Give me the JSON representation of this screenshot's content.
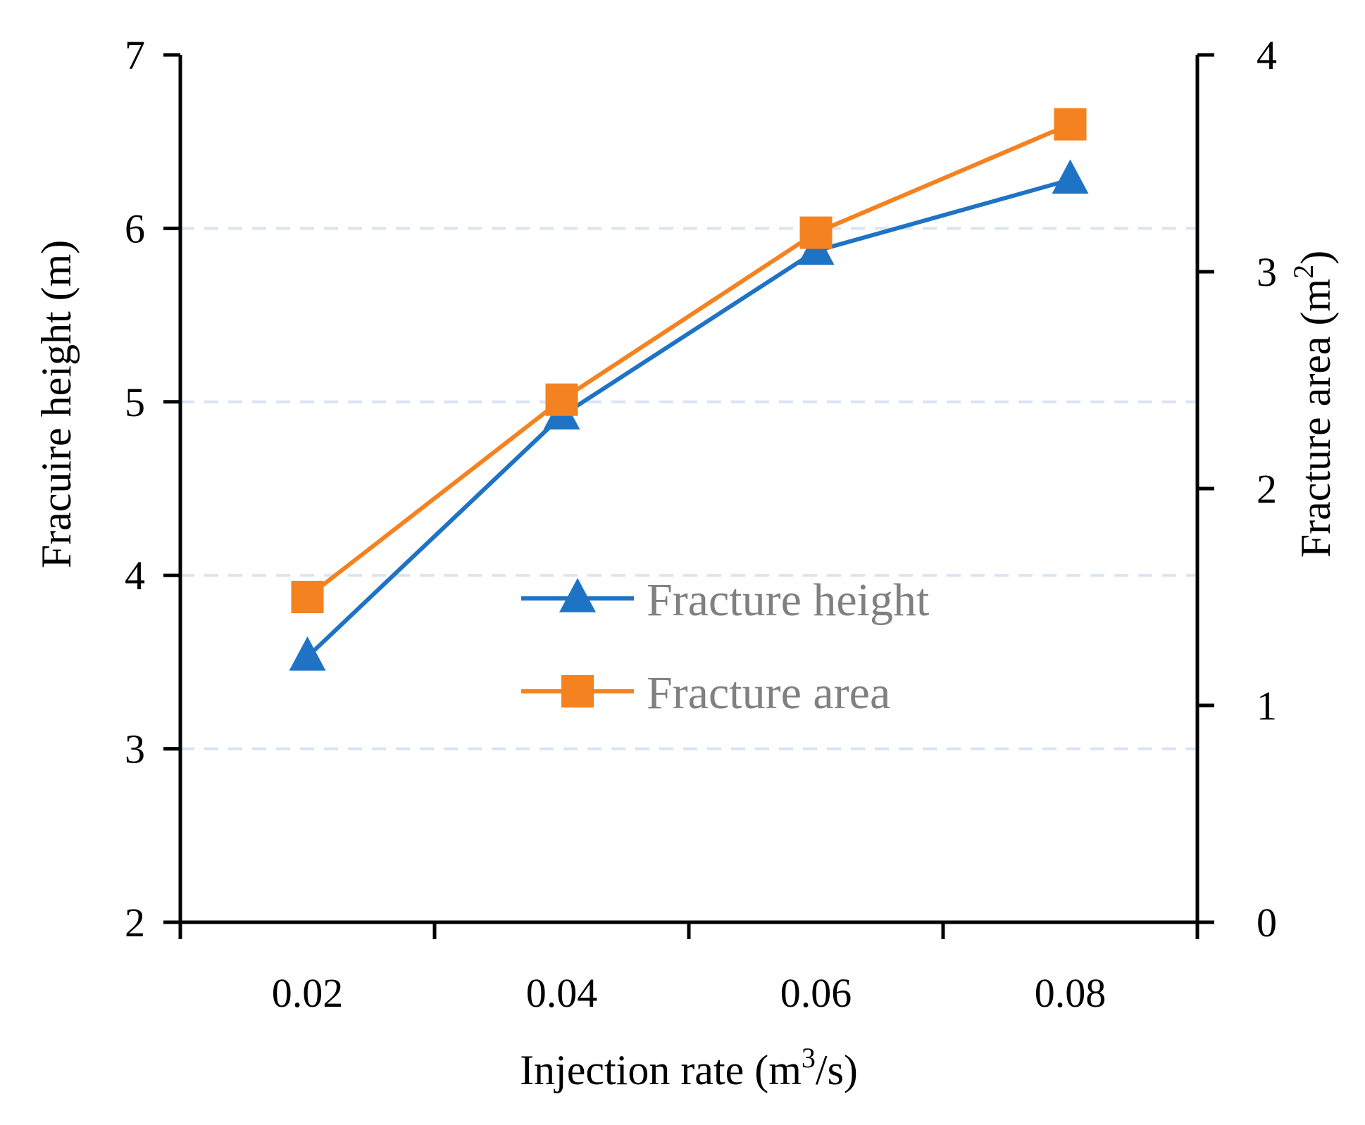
{
  "chart_data": {
    "type": "line",
    "x_ticks": [
      "0.02",
      "0.04",
      "0.06",
      "0.08"
    ],
    "xlabel": {
      "main": "Injection rate (m",
      "sup": "3",
      "tail": "/s)"
    },
    "y_left": {
      "label": "Fracuire height (m)",
      "ticks": [
        "2",
        "3",
        "4",
        "5",
        "6",
        "7"
      ],
      "ylim": [
        2,
        7
      ],
      "grid_values": [
        3,
        4,
        5,
        6
      ]
    },
    "y_right": {
      "label": {
        "main": "Fracture area (m",
        "sup": "2",
        "tail": ")"
      },
      "ticks": [
        "0",
        "1",
        "2",
        "3",
        "4"
      ],
      "ylim": [
        0,
        4
      ]
    },
    "series": [
      {
        "name": "Fracture height",
        "axis": "left",
        "marker": "triangle",
        "color": "#1f73c5",
        "x": [
          0.02,
          0.04,
          0.06,
          0.08
        ],
        "values": [
          3.53,
          4.92,
          5.87,
          6.28
        ]
      },
      {
        "name": "Fracture area",
        "axis": "right",
        "marker": "square",
        "color": "#f58220",
        "x": [
          0.02,
          0.04,
          0.06,
          0.08
        ],
        "values": [
          1.5,
          2.41,
          3.18,
          3.68
        ]
      }
    ],
    "grid_color": "#dae3f3",
    "legend_position": "center"
  }
}
